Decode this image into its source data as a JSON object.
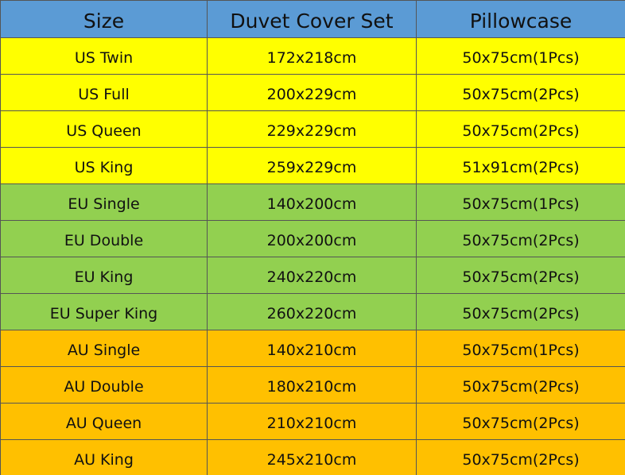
{
  "table": {
    "header": [
      "Size",
      "Duvet Cover Set",
      "Pillowcase"
    ],
    "rows": [
      [
        "US Twin",
        "172x218cm",
        "50x75cm(1Pcs)"
      ],
      [
        "US Full",
        "200x229cm",
        "50x75cm(2Pcs)"
      ],
      [
        "US Queen",
        "229x229cm",
        "50x75cm(2Pcs)"
      ],
      [
        "US King",
        "259x229cm",
        "51x91cm(2Pcs)"
      ],
      [
        "EU Single",
        "140x200cm",
        "50x75cm(1Pcs)"
      ],
      [
        "EU Double",
        "200x200cm",
        "50x75cm(2Pcs)"
      ],
      [
        "EU King",
        "240x220cm",
        "50x75cm(2Pcs)"
      ],
      [
        "EU Super King",
        "260x220cm",
        "50x75cm(2Pcs)"
      ],
      [
        "AU Single",
        "140x210cm",
        "50x75cm(1Pcs)"
      ],
      [
        "AU Double",
        "180x210cm",
        "50x75cm(2Pcs)"
      ],
      [
        "AU Queen",
        "210x210cm",
        "50x75cm(2Pcs)"
      ],
      [
        "AU King",
        "245x210cm",
        "50x75cm(2Pcs)"
      ]
    ]
  }
}
